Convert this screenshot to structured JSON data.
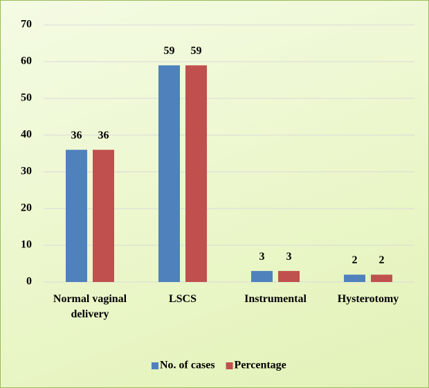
{
  "chart_data": {
    "type": "bar",
    "categories": [
      "Normal vaginal delivery",
      "LSCS",
      "Instrumental",
      "Hysterotomy"
    ],
    "series": [
      {
        "name": "No. of cases",
        "color": "#4f81bd",
        "values": [
          36,
          59,
          3,
          2
        ]
      },
      {
        "name": "Percentage",
        "color": "#c0504d",
        "values": [
          36,
          59,
          3,
          2
        ]
      }
    ],
    "ylim": [
      0,
      70
    ],
    "yticks": [
      0,
      10,
      20,
      30,
      40,
      50,
      60,
      70
    ],
    "grid": true,
    "legend": "bottom"
  }
}
